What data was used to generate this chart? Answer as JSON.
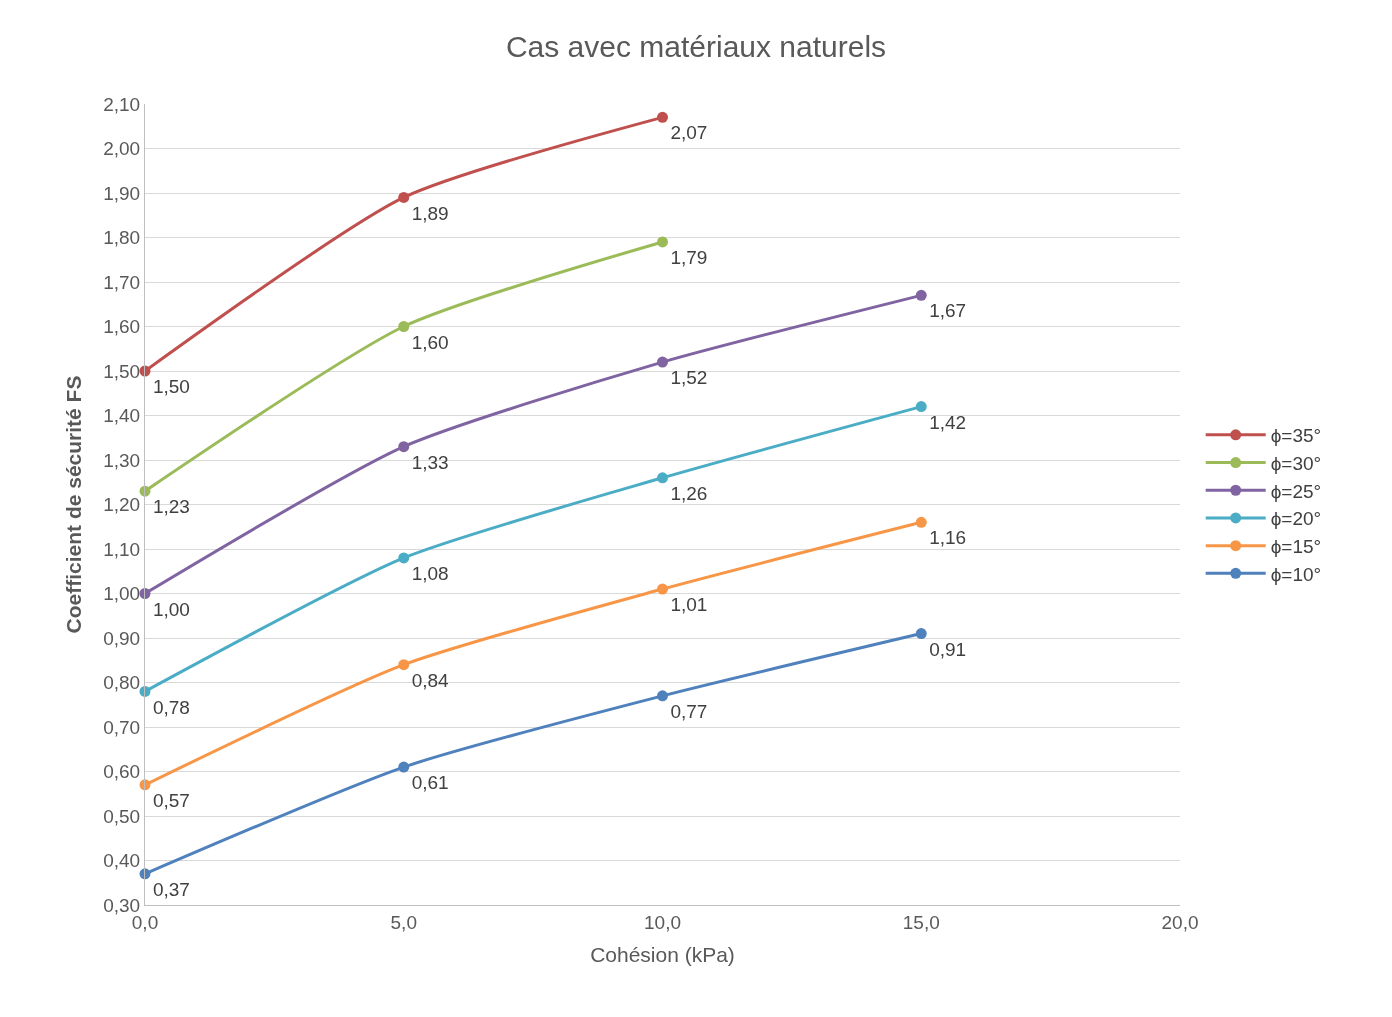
{
  "chart_data": {
    "type": "line",
    "title": "Cas avec matériaux naturels",
    "xlabel": "Cohésion (kPa)",
    "ylabel": "Coefficient de sécurité FS",
    "x": [
      0,
      5,
      10,
      15
    ],
    "series": [
      {
        "name": "ϕ=35°",
        "color": "#c0504d",
        "values": [
          1.5,
          1.89,
          2.07,
          null
        ],
        "value_labels": [
          "1,50",
          "1,89",
          "2,07",
          null
        ]
      },
      {
        "name": "ϕ=30°",
        "color": "#9bbb59",
        "values": [
          1.23,
          1.6,
          1.79,
          null
        ],
        "value_labels": [
          "1,23",
          "1,60",
          "1,79",
          null
        ]
      },
      {
        "name": "ϕ=25°",
        "color": "#8064a2",
        "values": [
          1.0,
          1.33,
          1.52,
          1.67
        ],
        "value_labels": [
          "1,00",
          "1,33",
          "1,52",
          "1,67"
        ]
      },
      {
        "name": "ϕ=20°",
        "color": "#4bacc6",
        "values": [
          0.78,
          1.08,
          1.26,
          1.42
        ],
        "value_labels": [
          "0,78",
          "1,08",
          "1,26",
          "1,42"
        ]
      },
      {
        "name": "ϕ=15°",
        "color": "#f79646",
        "values": [
          0.57,
          0.84,
          1.01,
          1.16
        ],
        "value_labels": [
          "0,57",
          "0,84",
          "1,01",
          "1,16"
        ]
      },
      {
        "name": "ϕ=10°",
        "color": "#4f81bd",
        "values": [
          0.37,
          0.61,
          0.77,
          0.91
        ],
        "value_labels": [
          "0,37",
          "0,61",
          "0,77",
          "0,91"
        ]
      }
    ],
    "xlim": [
      0,
      20
    ],
    "xticks": [
      {
        "value": 0,
        "label": "0,0"
      },
      {
        "value": 5,
        "label": "5,0"
      },
      {
        "value": 10,
        "label": "10,0"
      },
      {
        "value": 15,
        "label": "15,0"
      },
      {
        "value": 20,
        "label": "20,0"
      }
    ],
    "ylim": [
      0.3,
      2.1
    ],
    "yticks": [
      {
        "value": 0.3,
        "label": "0,30"
      },
      {
        "value": 0.4,
        "label": "0,40"
      },
      {
        "value": 0.5,
        "label": "0,50"
      },
      {
        "value": 0.6,
        "label": "0,60"
      },
      {
        "value": 0.7,
        "label": "0,70"
      },
      {
        "value": 0.8,
        "label": "0,80"
      },
      {
        "value": 0.9,
        "label": "0,90"
      },
      {
        "value": 1.0,
        "label": "1,00"
      },
      {
        "value": 1.1,
        "label": "1,10"
      },
      {
        "value": 1.2,
        "label": "1,20"
      },
      {
        "value": 1.3,
        "label": "1,30"
      },
      {
        "value": 1.4,
        "label": "1,40"
      },
      {
        "value": 1.5,
        "label": "1,50"
      },
      {
        "value": 1.6,
        "label": "1,60"
      },
      {
        "value": 1.7,
        "label": "1,70"
      },
      {
        "value": 1.8,
        "label": "1,80"
      },
      {
        "value": 1.9,
        "label": "1,90"
      },
      {
        "value": 2.0,
        "label": "2,00"
      },
      {
        "value": 2.1,
        "label": "2,10"
      }
    ],
    "grid": "y",
    "legend": "right",
    "marker": "circle",
    "line_style": "solid"
  }
}
